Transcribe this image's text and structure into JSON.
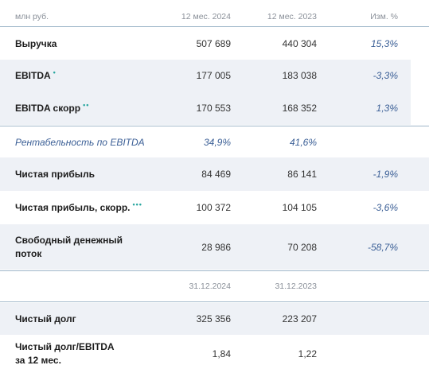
{
  "header": {
    "unit": "млн руб.",
    "col1": "12 мес. 2024",
    "col2": "12 мес. 2023",
    "col3": "Изм. %"
  },
  "rows": [
    {
      "label": "Выручка",
      "v1": "507 689",
      "v2": "440 304",
      "change": "15,3%",
      "mark": ""
    },
    {
      "label": "EBITDA",
      "v1": "177 005",
      "v2": "183 038",
      "change": "-3,3%",
      "mark": "•"
    },
    {
      "label": "EBITDA скорр",
      "v1": "170 553",
      "v2": "168 352",
      "change": "1,3%",
      "mark": "••"
    },
    {
      "label": "Рентабельность по EBITDA",
      "v1": "34,9%",
      "v2": "41,6%",
      "change": "",
      "mark": ""
    },
    {
      "label": "Чистая прибыль",
      "v1": "84 469",
      "v2": "86 141",
      "change": "-1,9%",
      "mark": ""
    },
    {
      "label": "Чистая прибыль, скорр.",
      "v1": "100 372",
      "v2": "104 105",
      "change": "-3,6%",
      "mark": "•••"
    },
    {
      "label": "Свободный денежный поток",
      "v1": "28 986",
      "v2": "70 208",
      "change": "-58,7%",
      "mark": ""
    }
  ],
  "debt_header": {
    "col1": "31.12.2024",
    "col2": "31.12.2023"
  },
  "debt_rows": [
    {
      "label": "Чистый долг",
      "v1": "325 356",
      "v2": "223 207"
    },
    {
      "label": "Чистый долг/EBITDA за 12 мес.",
      "v1": "1,84",
      "v2": "1,22"
    }
  ]
}
